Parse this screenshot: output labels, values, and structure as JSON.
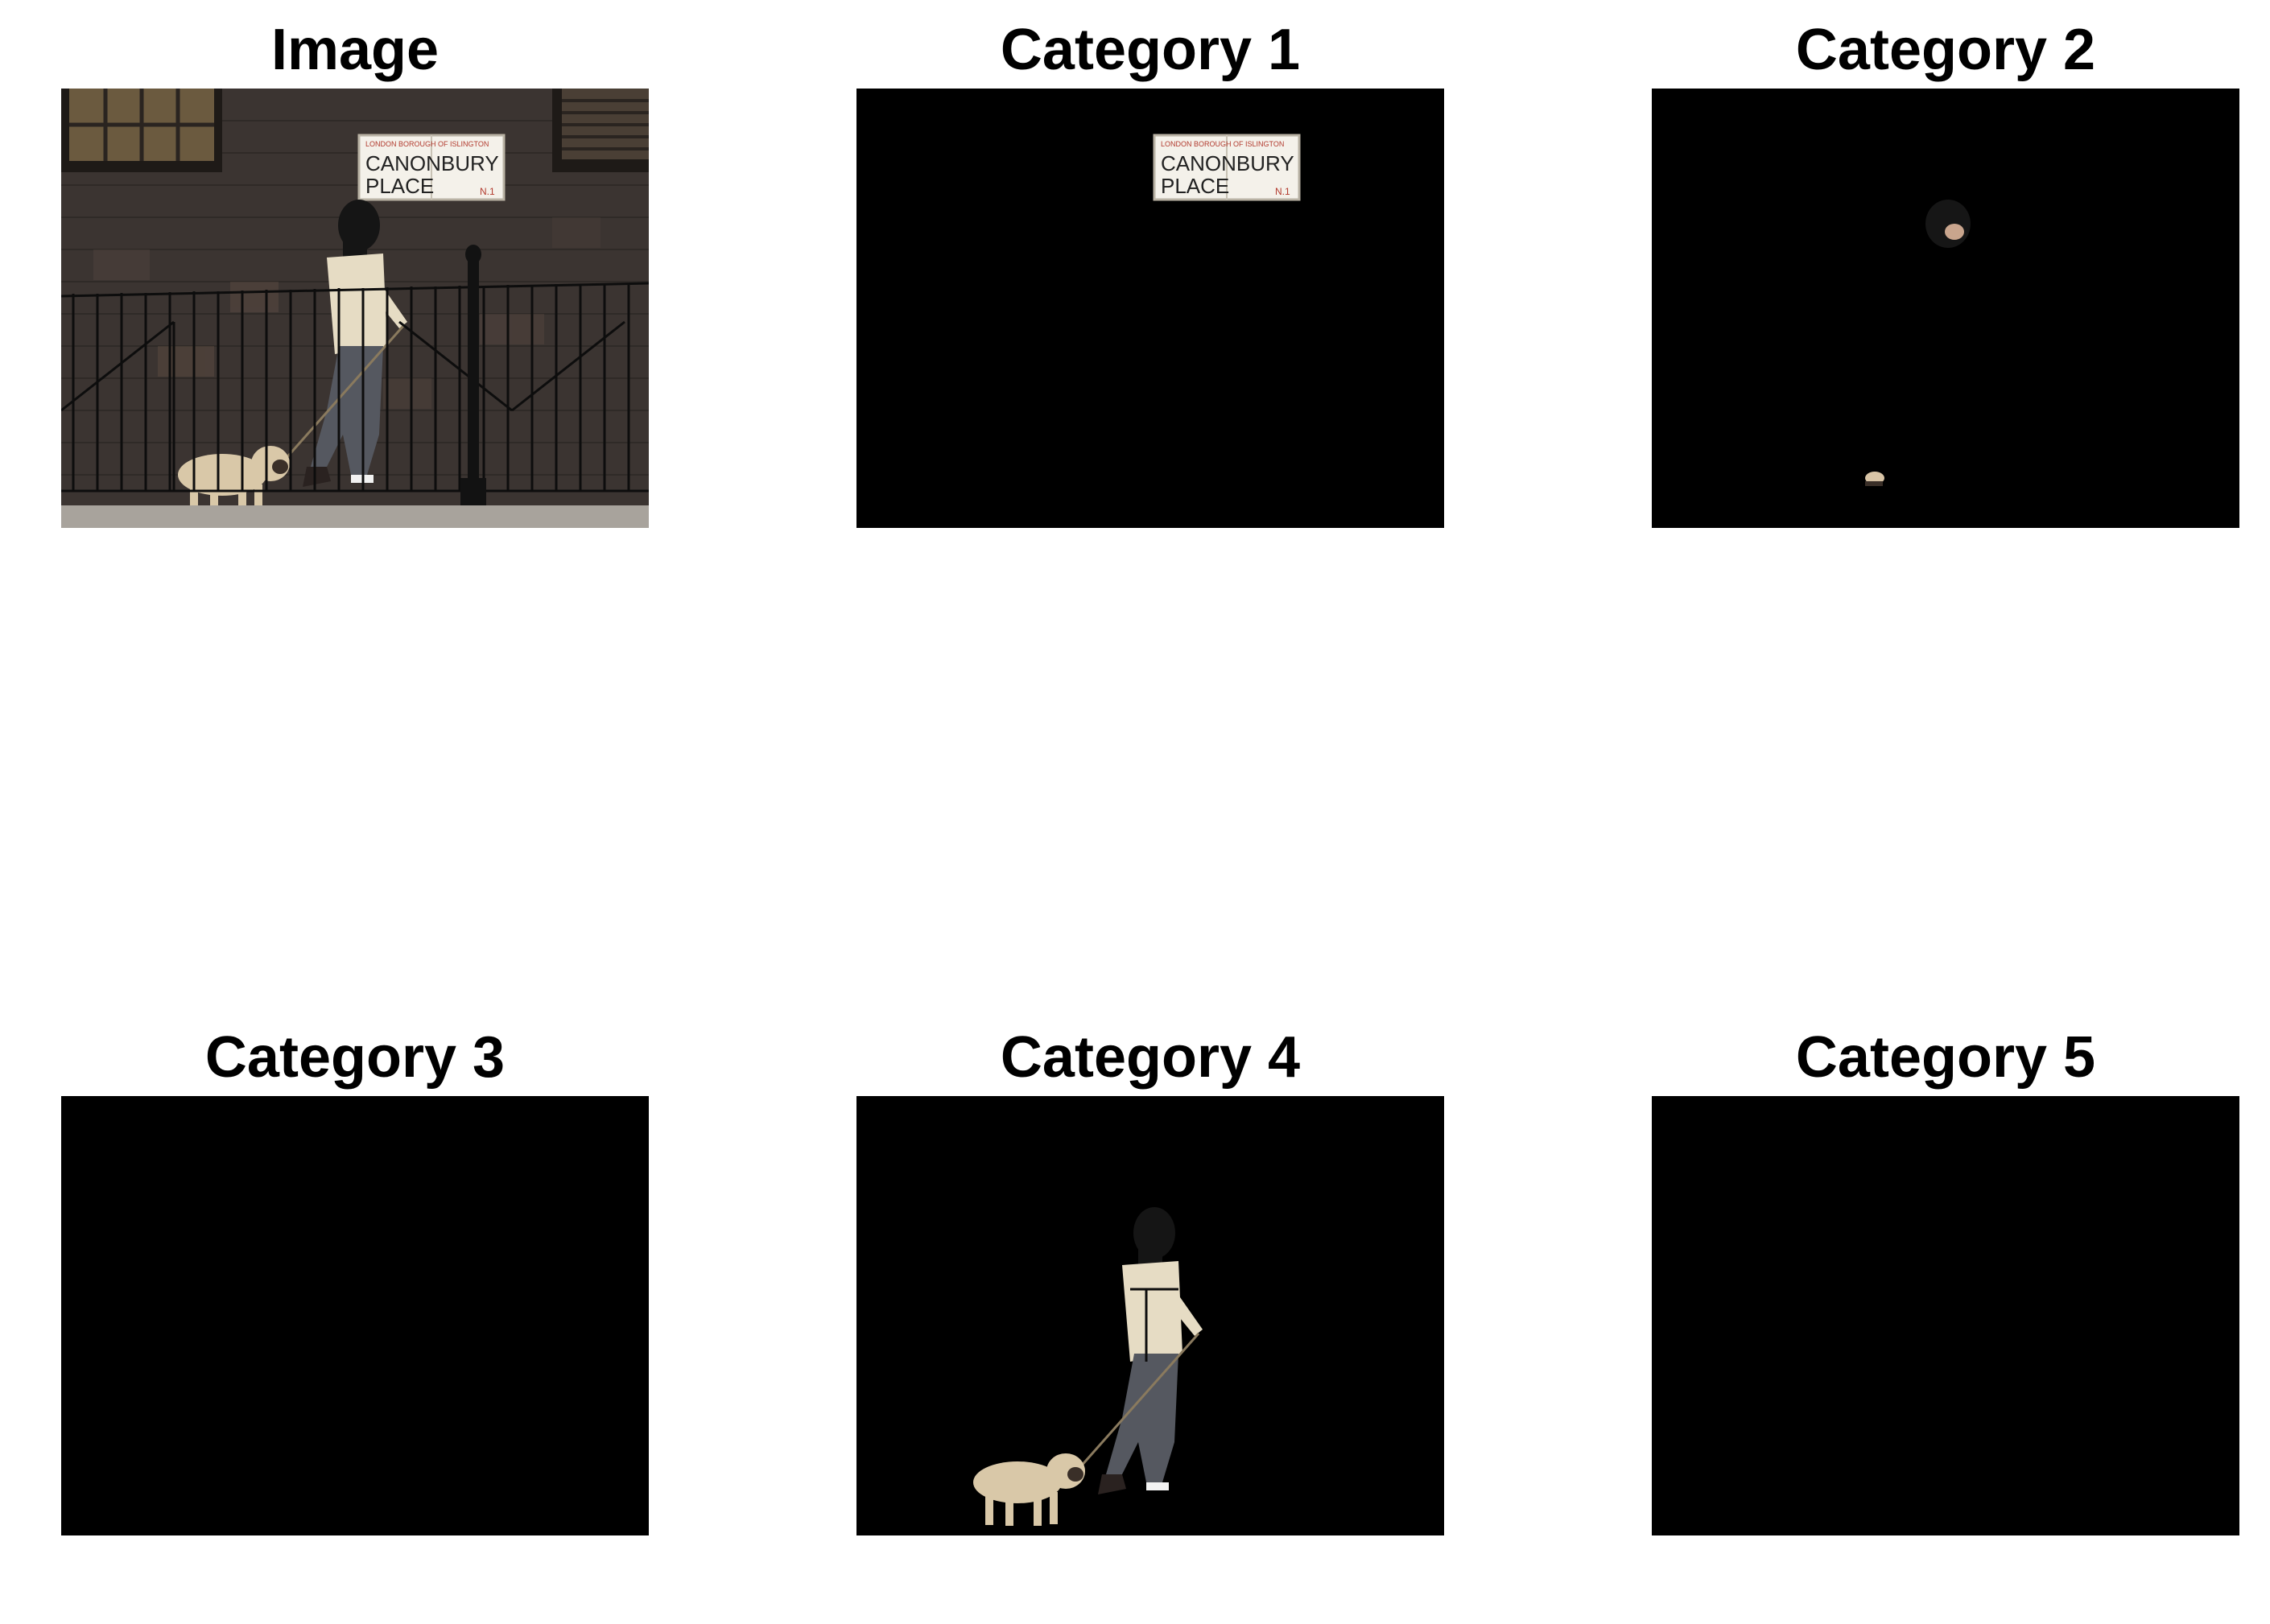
{
  "panels": [
    {
      "id": "image",
      "title": "Image",
      "content": "full-scene"
    },
    {
      "id": "category-1",
      "title": "Category 1",
      "content": "street-sign-only"
    },
    {
      "id": "category-2",
      "title": "Category 2",
      "content": "head-and-foot-fragments"
    },
    {
      "id": "category-3",
      "title": "Category 3",
      "content": "empty"
    },
    {
      "id": "category-4",
      "title": "Category 4",
      "content": "woman-and-dog"
    },
    {
      "id": "category-5",
      "title": "Category 5",
      "content": "empty"
    }
  ],
  "sign": {
    "top_line": "LONDON BOROUGH OF ISLINGTON",
    "line_1": "CANONBURY",
    "line_2": "PLACE",
    "postcode": "N.1"
  },
  "colors": {
    "background": "#ffffff",
    "mask": "#000000",
    "brick": "#3b3431",
    "sign_face": "#f4f1ea",
    "sign_red": "#b23a2e",
    "coat": "#e6dcc4",
    "jeans": "#555860",
    "pug": "#d9c8a8"
  }
}
